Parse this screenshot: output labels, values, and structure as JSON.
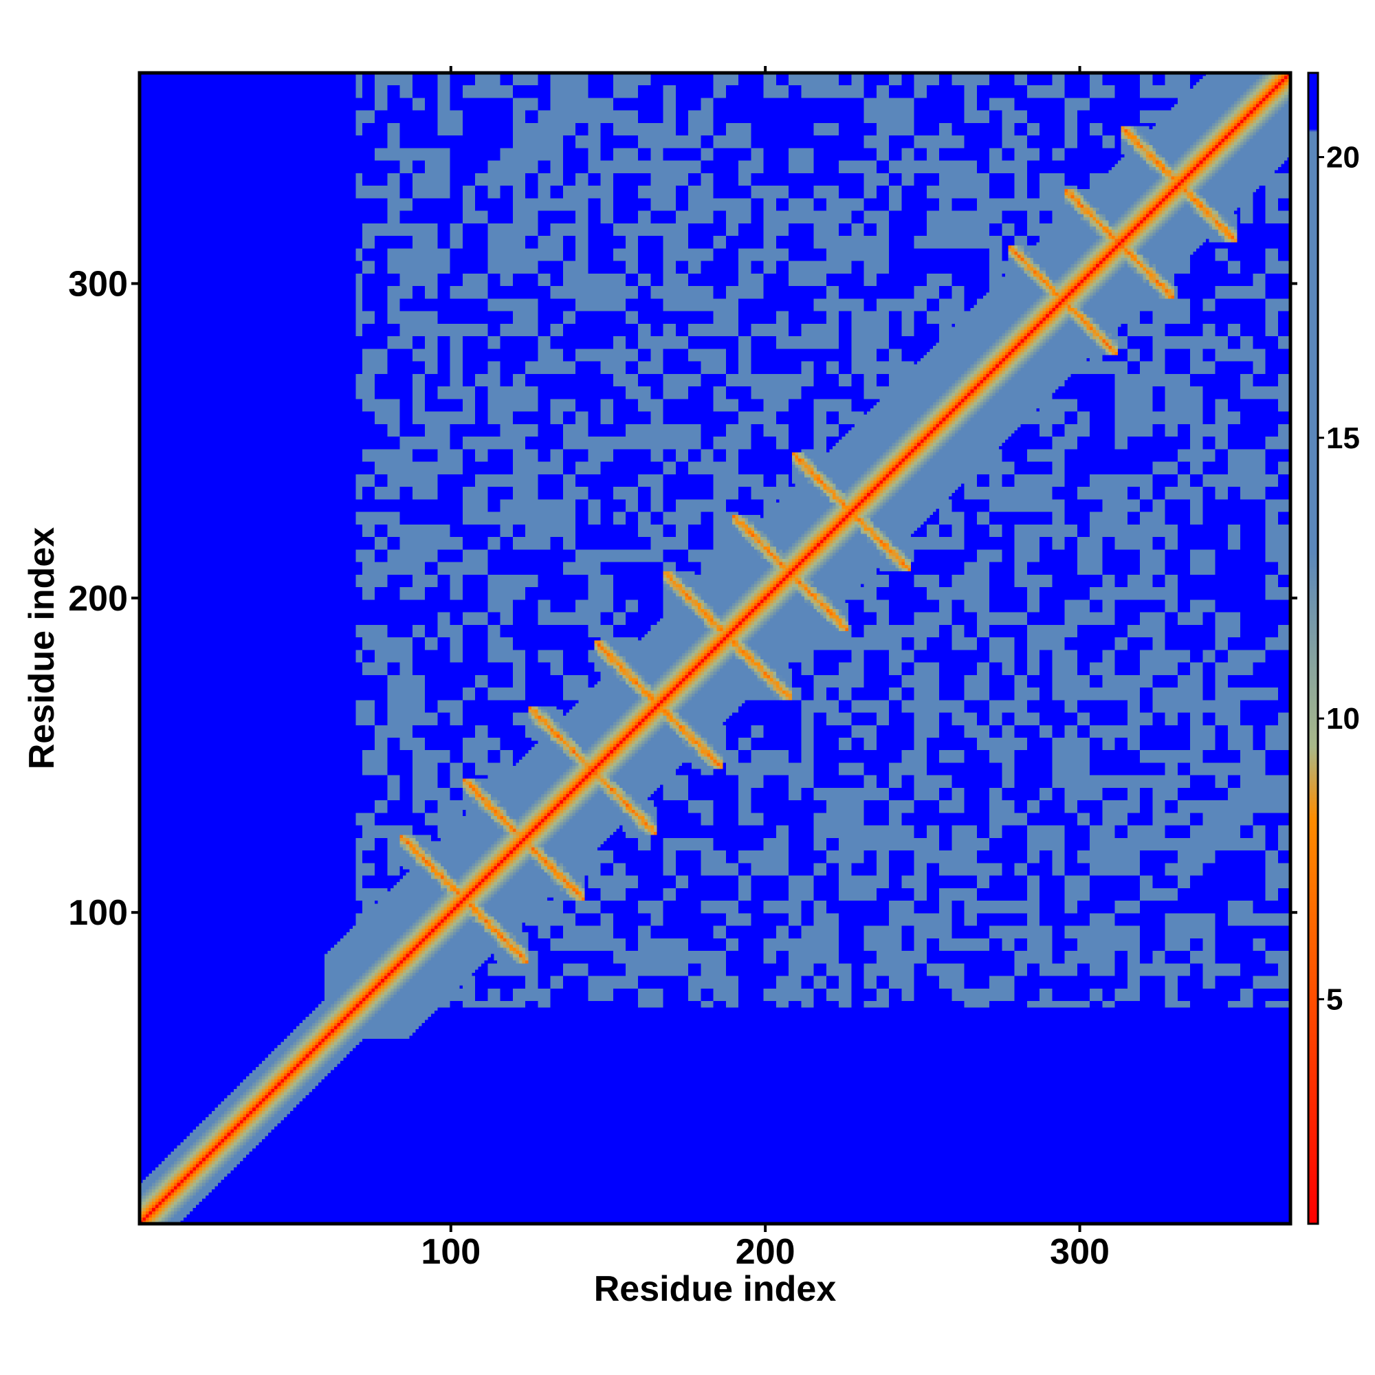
{
  "chart_data": {
    "type": "heatmap",
    "title": "",
    "xlabel": "Residue index",
    "ylabel": "Residue index",
    "xlim": [
      1,
      367
    ],
    "ylim": [
      1,
      367
    ],
    "x_ticks": [
      100,
      200,
      300
    ],
    "y_ticks": [
      100,
      200,
      300
    ],
    "colorbar": {
      "ticks": [
        5,
        10,
        15,
        20
      ],
      "range": [
        1,
        21.5
      ],
      "colors": {
        "close": "#ff0000",
        "near": "#ff8c00",
        "mid": "#a9b98a",
        "far": "#5b87bb",
        "max": "#0000ff"
      }
    },
    "features": {
      "beta_pairs": [
        {
          "start": 84,
          "end": 124,
          "type": "antiparallel"
        },
        {
          "start": 104,
          "end": 142,
          "type": "antiparallel"
        },
        {
          "start": 125,
          "end": 165,
          "type": "antiparallel"
        },
        {
          "start": 146,
          "end": 186,
          "type": "antiparallel"
        },
        {
          "start": 168,
          "end": 208,
          "type": "antiparallel"
        },
        {
          "start": 190,
          "end": 226,
          "type": "antiparallel"
        },
        {
          "start": 209,
          "end": 246,
          "type": "antiparallel"
        },
        {
          "start": 278,
          "end": 312,
          "type": "antiparallel"
        },
        {
          "start": 296,
          "end": 330,
          "type": "antiparallel"
        },
        {
          "start": 314,
          "end": 350,
          "type": "antiparallel"
        }
      ],
      "close_region": [
        70,
        367
      ],
      "tail_region": [
        1,
        60
      ]
    }
  }
}
